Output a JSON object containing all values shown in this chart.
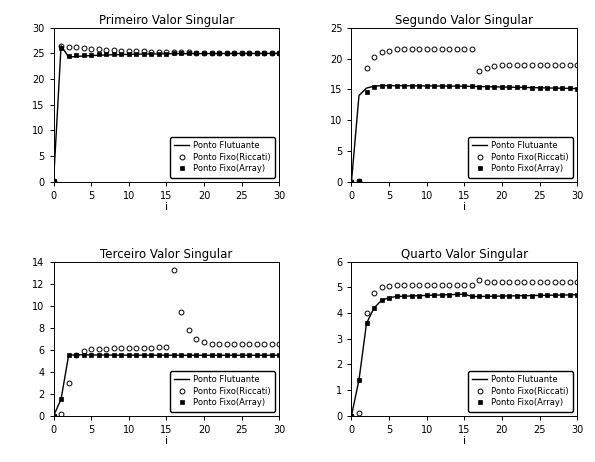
{
  "title1": "Primeiro Valor Singular",
  "title2": "Segundo Valor Singular",
  "title3": "Terceiro Valor Singular",
  "title4": "Quarto Valor Singular",
  "xlabel": "i",
  "legend_labels": [
    "Ponto Flutuante",
    "Ponto Fixo(Riccati)",
    "Ponto Fixo(Array)"
  ],
  "ylim1": [
    0,
    30
  ],
  "ylim2": [
    0,
    25
  ],
  "ylim3": [
    0,
    14
  ],
  "ylim4": [
    0,
    6
  ],
  "yticks1": [
    0,
    5,
    10,
    15,
    20,
    25,
    30
  ],
  "yticks2": [
    0,
    5,
    10,
    15,
    20,
    25
  ],
  "yticks3": [
    0,
    2,
    4,
    6,
    8,
    10,
    12,
    14
  ],
  "yticks4": [
    0,
    1,
    2,
    3,
    4,
    5,
    6
  ],
  "xlim": [
    0,
    30
  ],
  "xticks": [
    0,
    5,
    10,
    15,
    20,
    25,
    30
  ],
  "background": "#ffffff",
  "line_color": "#000000"
}
